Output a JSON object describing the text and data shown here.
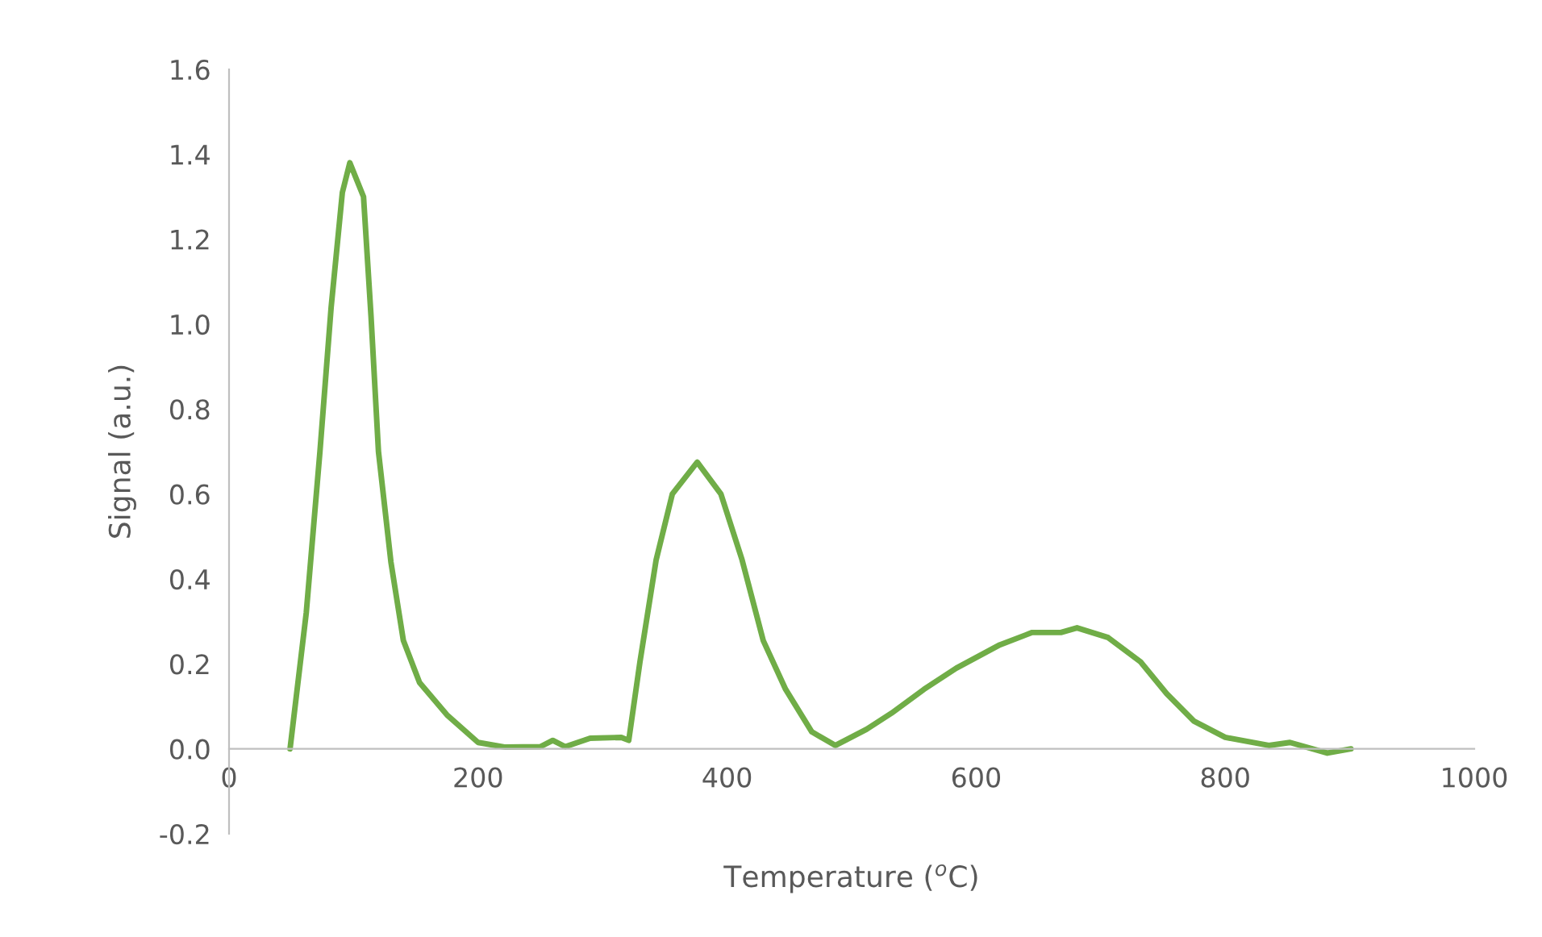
{
  "chart_data": {
    "type": "line",
    "xlabel": "Temperature ($^{o}$C)",
    "ylabel": "Signal (a.u.)",
    "xlim": [
      0,
      1000
    ],
    "xticks": [
      0,
      200,
      400,
      600,
      800,
      1000
    ],
    "ylim": [
      -0.2,
      1.6
    ],
    "yticks": [
      {
        "value": -0.2,
        "label": "-0.2"
      },
      {
        "value": 0,
        "label": "0.0"
      },
      {
        "value": 0.2,
        "label": "0.2"
      },
      {
        "value": 0.4,
        "label": "0.4"
      },
      {
        "value": 0.6,
        "label": "0.6"
      },
      {
        "value": 0.8,
        "label": "0.8"
      },
      {
        "value": 1.0,
        "label": "1.0"
      },
      {
        "value": 1.2,
        "label": "1.2"
      },
      {
        "value": 1.4,
        "label": "1.4"
      },
      {
        "value": 1.6,
        "label": "1.6"
      }
    ],
    "grid": false,
    "legend": false,
    "marker": "none",
    "line_style": "solid",
    "series": [
      {
        "color": "#70ad47",
        "x": [
          49,
          62,
          73,
          82,
          91,
          97,
          108,
          114,
          120,
          130,
          140,
          153,
          175,
          200,
          222,
          250,
          260,
          270,
          290,
          315,
          321,
          330,
          343,
          356,
          376,
          395,
          412,
          429,
          447,
          468,
          487,
          512,
          532,
          558,
          584,
          619,
          645,
          668,
          681,
          706,
          732,
          753,
          775,
          800,
          835,
          852,
          882,
          901
        ],
        "values": [
          0,
          0.32,
          0.7,
          1.04,
          1.31,
          1.38,
          1.3,
          1.02,
          0.7,
          0.44,
          0.255,
          0.156,
          0.08,
          0.015,
          0.004,
          0.005,
          0.02,
          0.005,
          0.025,
          0.027,
          0.02,
          0.205,
          0.445,
          0.6,
          0.675,
          0.6,
          0.445,
          0.255,
          0.14,
          0.04,
          0.008,
          0.046,
          0.084,
          0.14,
          0.19,
          0.245,
          0.274,
          0.274,
          0.285,
          0.262,
          0.205,
          0.13,
          0.065,
          0.027,
          0.008,
          0.015,
          -0.01,
          0
        ]
      }
    ]
  }
}
